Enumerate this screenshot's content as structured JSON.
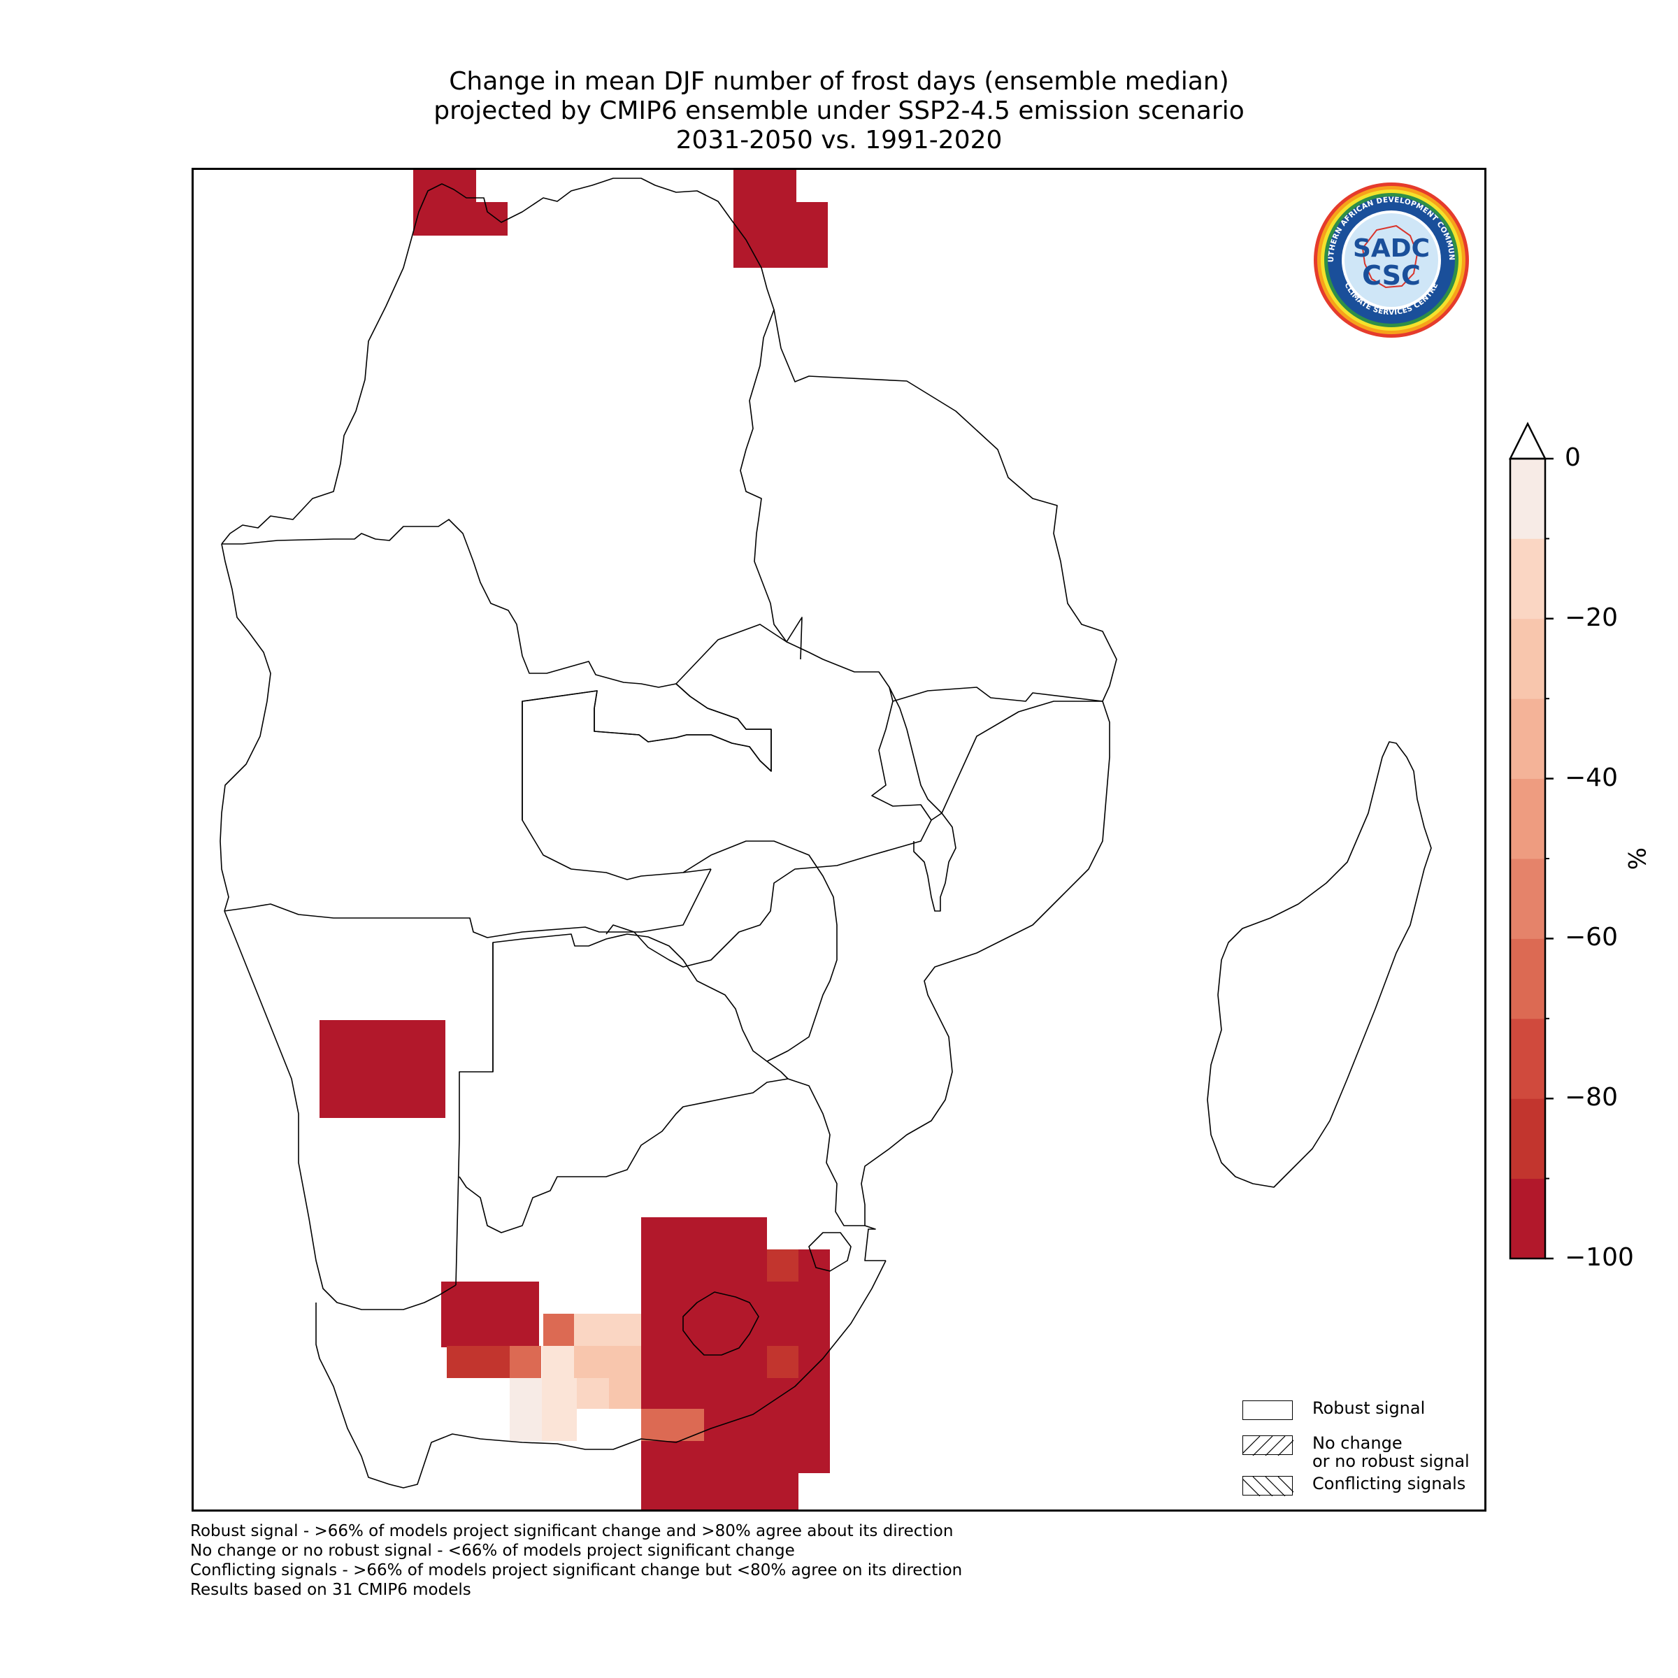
{
  "title": {
    "line1": "Change in mean DJF number of frost days (ensemble median)",
    "line2": "projected by CMIP6 ensemble under SSP2-4.5 emission scenario",
    "line3": "2031-2050 vs. 1991-2020"
  },
  "logo": {
    "name": "sadc-csc-logo",
    "text_top": "SOUTHERN AFRICAN DEVELOPMENT COMMUNITY",
    "text_bottom": "CLIMATE SERVICES CENTRE",
    "monogram_top": "SADC",
    "monogram_bottom": "CSC"
  },
  "colorbar": {
    "unit": "%",
    "ticks": [
      "0",
      "−20",
      "−40",
      "−60",
      "−80",
      "−100"
    ],
    "tick_values": [
      0,
      -20,
      -40,
      -60,
      -80,
      -100
    ],
    "range": [
      -100,
      0
    ],
    "extend": "max",
    "bin_colors": [
      "#b2182b",
      "#c2352e",
      "#d04a3d",
      "#dc6a53",
      "#e5836a",
      "#ee9c80",
      "#f4b398",
      "#f8c6ad",
      "#fad6c3",
      "#fbe4d7",
      "#f7ebe6"
    ]
  },
  "legend": {
    "robust": "Robust signal",
    "no_change_1": "No change",
    "no_change_2": "or no robust signal",
    "conflicting": "Conflicting signals"
  },
  "footnotes": {
    "line1": "Robust signal - >66% of models project significant change and >80% agree about its direction",
    "line2": "No change or no robust signal - <66% of models project significant change",
    "line3": "Conflicting signals - >66% of models project significant change but <80% agree on its direction",
    "line4": "Results based on 31 CMIP6 models"
  },
  "map_data": {
    "type": "gridded-map",
    "region": "Southern Africa (SADC)",
    "cell_values_percent": [
      {
        "area": "northern Democratic Republic of the Congo (west)",
        "value": -100
      },
      {
        "area": "northern Democratic Republic of the Congo (east)",
        "value": -100
      },
      {
        "area": "central Namibia",
        "value": -100
      },
      {
        "area": "South Africa interior / Lesotho",
        "value": -100
      },
      {
        "area": "South Africa north-east",
        "value": -90
      },
      {
        "area": "Western/Northern Cape",
        "value": -90
      },
      {
        "area": "Northern Cape (central)",
        "value": -70
      },
      {
        "area": "Eastern Cape (south)",
        "value": -60
      },
      {
        "area": "Karoo",
        "value": -35
      },
      {
        "area": "Karoo (north)",
        "value": -25
      },
      {
        "area": "Karoo (south)",
        "value": -15
      },
      {
        "area": "Western Cape (interior)",
        "value": -2
      }
    ]
  }
}
